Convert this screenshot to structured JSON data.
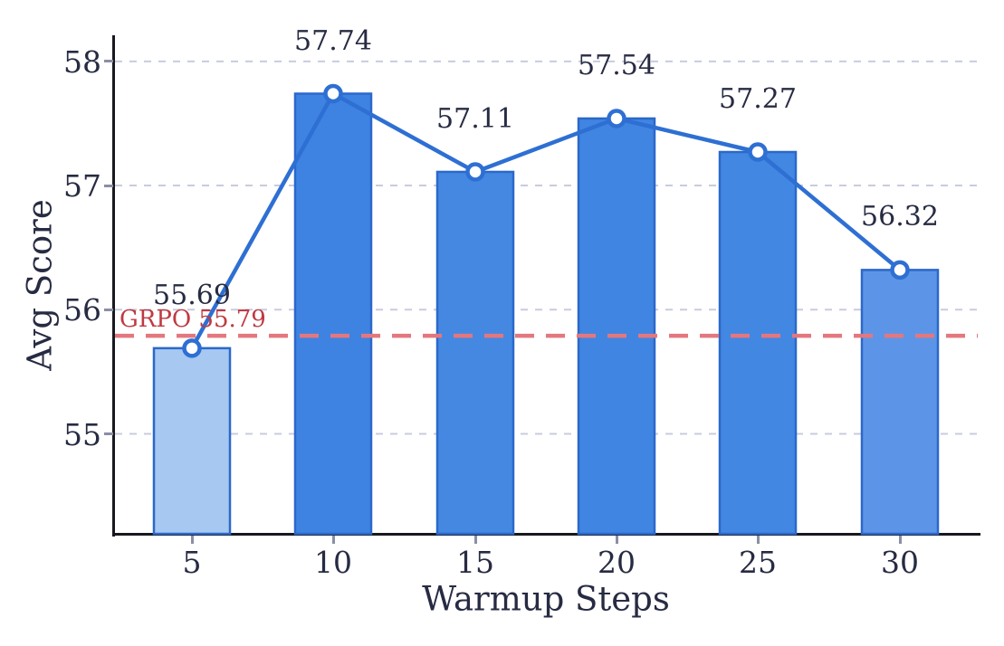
{
  "chart_data": {
    "type": "bar",
    "title": "",
    "xlabel": "Warmup Steps",
    "ylabel": "Avg Score",
    "categories": [
      "5",
      "10",
      "15",
      "20",
      "25",
      "30"
    ],
    "values": [
      55.69,
      57.74,
      57.11,
      57.54,
      57.27,
      56.32
    ],
    "value_labels": [
      "55.69",
      "57.74",
      "57.11",
      "57.54",
      "57.27",
      "56.32"
    ],
    "series": [
      {
        "name": "Avg Score",
        "values": [
          55.69,
          57.74,
          57.11,
          57.54,
          57.27,
          56.32
        ]
      }
    ],
    "overlay": "line-with-circle-markers",
    "ytick_labels": [
      "55",
      "56",
      "57",
      "58"
    ],
    "ytick_values": [
      55,
      56,
      57,
      58
    ],
    "ylim": [
      54.195,
      58.21
    ],
    "grid": true,
    "grid_axis": "y",
    "grid_style": "dashed",
    "legend_position": "none",
    "reference_line": {
      "value": 55.79,
      "label": "GRPO 55.79",
      "style": "dashed"
    },
    "colors": {
      "bar_fills": [
        "#a6c8f1",
        "#3e83e1",
        "#4588e2",
        "#3f85e1",
        "#4287e2",
        "#5c95e7"
      ],
      "bar_edge": "#2b68ca",
      "line": "#2e6fd3",
      "marker_fill": "#ffffff",
      "marker_edge": "#2e6fd3",
      "grid": "#c8ccdf",
      "reference_line": "#e4777e",
      "reference_label": "#bf3a42",
      "text": "#272b42",
      "axis": "#17191f",
      "tick": "#8a8ea5",
      "background": "#ffffff"
    }
  }
}
